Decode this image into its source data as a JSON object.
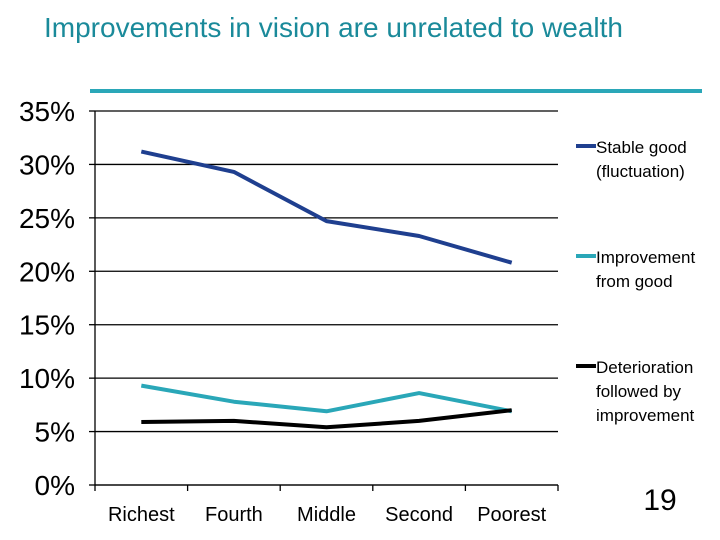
{
  "slide": {
    "title": "Improvements in vision are unrelated to wealth",
    "page_number": "19"
  },
  "colors": {
    "title": "#1a8a9a",
    "rule": "#2aa7b8",
    "stable_good": "#1f3f8f",
    "improvement_from_good": "#2aa7b8",
    "deterioration": "#000000"
  },
  "chart_data": {
    "type": "line",
    "title": "",
    "xlabel": "",
    "ylabel": "",
    "categories": [
      "Richest",
      "Fourth",
      "Middle",
      "Second",
      "Poorest"
    ],
    "ylim": [
      0,
      35
    ],
    "yticks": [
      0,
      5,
      10,
      15,
      20,
      25,
      30,
      35
    ],
    "ytick_labels": [
      "0%",
      "5%",
      "10%",
      "15%",
      "20%",
      "25%",
      "30%",
      "35%"
    ],
    "grid": true,
    "legend": "right",
    "series": [
      {
        "name": "Stable good (fluctuation)",
        "legend_lines": [
          "Stable good",
          "(fluctuation)"
        ],
        "color": "#1f3f8f",
        "values": [
          31.2,
          29.3,
          24.7,
          23.3,
          20.8
        ]
      },
      {
        "name": "Improvement from good",
        "legend_lines": [
          "Improvement",
          "from good"
        ],
        "color": "#2aa7b8",
        "values": [
          9.3,
          7.8,
          6.9,
          8.6,
          6.9
        ]
      },
      {
        "name": "Deterioration followed by improvement",
        "legend_lines": [
          "Deterioration",
          "followed by",
          "improvement"
        ],
        "color": "#000000",
        "values": [
          5.9,
          6.0,
          5.4,
          6.0,
          7.0
        ]
      }
    ]
  }
}
